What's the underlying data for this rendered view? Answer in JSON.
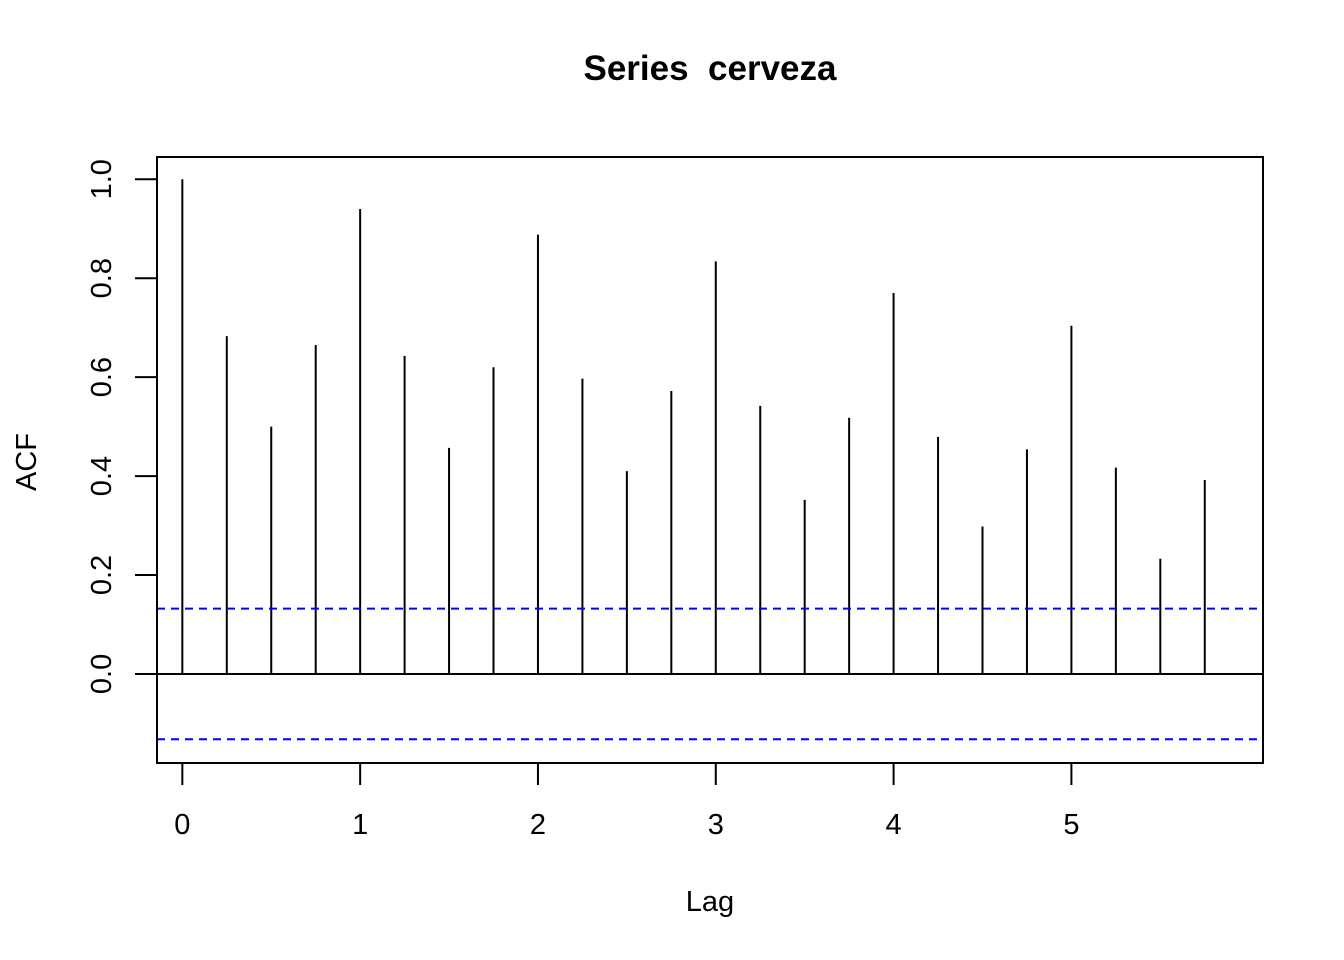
{
  "chart_data": {
    "type": "bar",
    "title": "Series  cerveza",
    "xlabel": "Lag",
    "ylabel": "ACF",
    "xlim": [
      -0.1425,
      6.0775
    ],
    "ylim": [
      -0.18,
      1.045
    ],
    "x_ticks": [
      0,
      1,
      2,
      3,
      4,
      5
    ],
    "x_tick_labels": [
      "0",
      "1",
      "2",
      "3",
      "4",
      "5"
    ],
    "y_ticks": [
      0.0,
      0.2,
      0.4,
      0.6,
      0.8,
      1.0
    ],
    "y_tick_labels": [
      "0.0",
      "0.2",
      "0.4",
      "0.6",
      "0.8",
      "1.0"
    ],
    "lags": [
      0,
      0.25,
      0.5,
      0.75,
      1,
      1.25,
      1.5,
      1.75,
      2,
      2.25,
      2.5,
      2.75,
      3,
      3.25,
      3.5,
      3.75,
      4,
      4.25,
      4.5,
      4.75,
      5,
      5.25,
      5.5,
      5.75
    ],
    "acf": [
      1.0,
      0.683,
      0.5,
      0.665,
      0.94,
      0.643,
      0.457,
      0.62,
      0.888,
      0.597,
      0.41,
      0.572,
      0.834,
      0.542,
      0.352,
      0.518,
      0.77,
      0.479,
      0.298,
      0.454,
      0.704,
      0.417,
      0.233,
      0.392
    ],
    "confidence_bound": 0.132,
    "grid": false,
    "colors": {
      "spikes": "#000000",
      "zero_line": "#000000",
      "confidence_lines": "#0000ff"
    }
  }
}
